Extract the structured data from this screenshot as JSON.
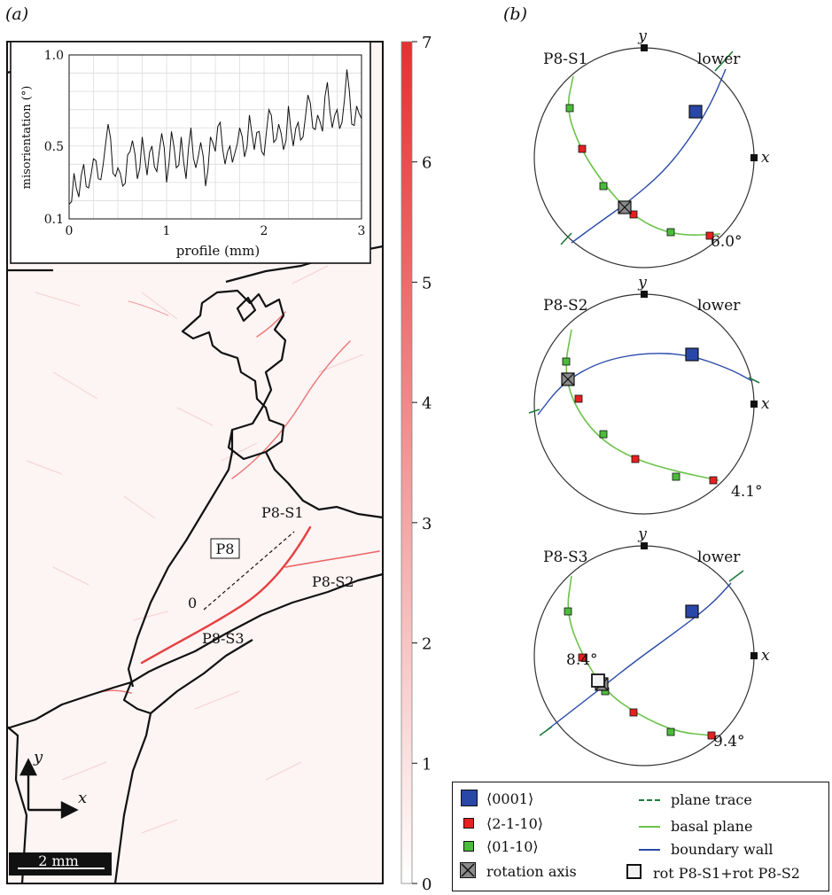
{
  "panel_a": {
    "label": "(a)",
    "inset": {
      "ylabel": "misorientation (°)",
      "xlabel": "profile (mm)",
      "yticks": [
        "1.0",
        "0.5",
        "0.1"
      ],
      "xticks": [
        "0",
        "1",
        "2",
        "3"
      ]
    },
    "colorbar": {
      "ticks": [
        "7",
        "6",
        "5",
        "4",
        "3",
        "2",
        "1",
        "0"
      ],
      "color_max": "#e63030",
      "color_min": "#ffffff"
    },
    "map_labels": {
      "grain": "P8",
      "s1": "P8-S1",
      "s2": "P8-S2",
      "s3": "P8-S3",
      "profile_start": "0"
    },
    "axes": {
      "y": "y",
      "x": "x"
    },
    "scalebar": "2 mm"
  },
  "panel_b": {
    "label": "(b)",
    "nets": [
      {
        "name": "P8-S1",
        "hemisphere": "lower",
        "axis_y": "y",
        "axis_x": "x",
        "angle": "6.0°"
      },
      {
        "name": "P8-S2",
        "hemisphere": "lower",
        "axis_y": "y",
        "axis_x": "x",
        "angle": "4.1°"
      },
      {
        "name": "P8-S3",
        "hemisphere": "lower",
        "axis_y": "y",
        "axis_x": "x",
        "angle": "9.4°",
        "angle2": "8.4°"
      }
    ]
  },
  "legend": {
    "c0001": "⟨0001⟩",
    "a2110": "⟨2-1-10⟩",
    "m0110": "⟨01-10⟩",
    "rot_axis": "rotation axis",
    "plane_trace": "plane trace",
    "basal_plane": "basal plane",
    "boundary_wall": "boundary wall",
    "rot_combo": "rot P8-S1+rot P8-S2"
  },
  "colors": {
    "c_axis": "#2847a8",
    "a_axis": "#e62020",
    "m_axis": "#4cbb3c",
    "plane_trace": "#1f7a3a",
    "basal": "#6cc24a",
    "wall": "#2a4aa8",
    "rotation": "#8a8a8a"
  },
  "chart_data": {
    "type": "line",
    "xlabel": "profile (mm)",
    "ylabel": "misorientation (°)",
    "xlim": [
      0,
      3
    ],
    "ylim": [
      0.1,
      1.0
    ],
    "grid": true,
    "x": [
      0,
      0.05,
      0.1,
      0.15,
      0.2,
      0.25,
      0.3,
      0.35,
      0.4,
      0.45,
      0.5,
      0.55,
      0.6,
      0.65,
      0.7,
      0.75,
      0.8,
      0.85,
      0.9,
      0.95,
      1.0,
      1.05,
      1.1,
      1.15,
      1.2,
      1.25,
      1.3,
      1.35,
      1.4,
      1.45,
      1.5,
      1.55,
      1.6,
      1.65,
      1.7,
      1.75,
      1.8,
      1.85,
      1.9,
      1.95,
      2.0,
      2.05,
      2.1,
      2.15,
      2.2,
      2.25,
      2.3,
      2.35,
      2.4,
      2.45,
      2.5,
      2.55,
      2.6,
      2.65,
      2.7,
      2.75,
      2.8,
      2.85,
      2.9,
      2.95,
      3.0
    ],
    "series": [
      {
        "values": [
          0.18,
          0.35,
          0.22,
          0.4,
          0.27,
          0.43,
          0.32,
          0.4,
          0.62,
          0.35,
          0.38,
          0.28,
          0.45,
          0.53,
          0.32,
          0.55,
          0.34,
          0.5,
          0.36,
          0.57,
          0.3,
          0.58,
          0.38,
          0.55,
          0.32,
          0.6,
          0.38,
          0.52,
          0.28,
          0.55,
          0.47,
          0.63,
          0.4,
          0.5,
          0.46,
          0.6,
          0.44,
          0.67,
          0.48,
          0.58,
          0.45,
          0.7,
          0.52,
          0.62,
          0.48,
          0.72,
          0.5,
          0.63,
          0.55,
          0.78,
          0.6,
          0.67,
          0.58,
          0.85,
          0.6,
          0.7,
          0.63,
          0.92,
          0.62,
          0.72,
          0.65
        ]
      }
    ]
  }
}
